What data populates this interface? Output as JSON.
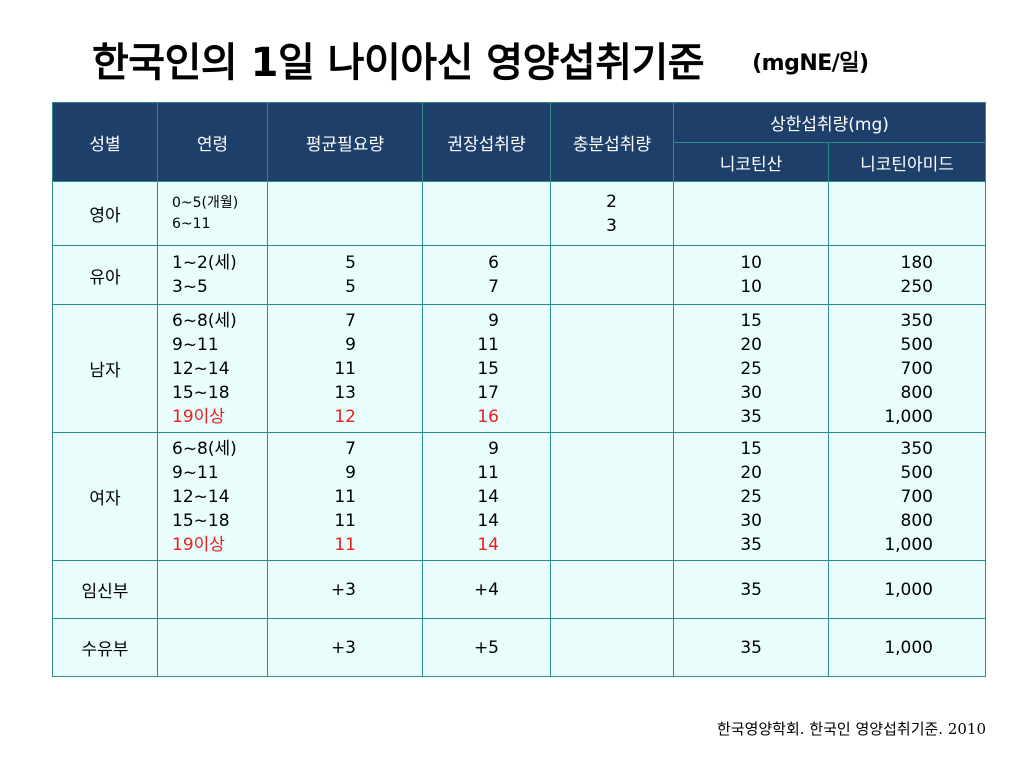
{
  "title": "한국인의 1일 나이아신 영양섭취기준",
  "unit": "(mgNE/일)",
  "headers": {
    "sex": "성별",
    "age": "연령",
    "avg": "평균필요량",
    "rec": "권장섭취량",
    "ade": "충분섭취량",
    "upper": "상한섭취량(mg)",
    "nicotinic": "니코틴산",
    "nicotinamide": "니코틴아미드"
  },
  "rows": [
    {
      "sex": "영아",
      "ages": [
        "0~5(개월)",
        "6~11"
      ],
      "avg": [],
      "rec": [],
      "ade": [
        "2",
        "3"
      ],
      "nic": [],
      "nam": []
    },
    {
      "sex": "유아",
      "ages": [
        "1~2(세)",
        "3~5"
      ],
      "avg": [
        "5",
        "5"
      ],
      "rec": [
        "6",
        "7"
      ],
      "ade": [],
      "nic": [
        "10",
        "10"
      ],
      "nam": [
        "180",
        "250"
      ]
    },
    {
      "sex": "남자",
      "ages": [
        "6~8(세)",
        "9~11",
        "12~14",
        "15~18",
        "19이상"
      ],
      "avg": [
        "7",
        "9",
        "11",
        "13",
        "12"
      ],
      "rec": [
        "9",
        "11",
        "15",
        "17",
        "16"
      ],
      "ade": [],
      "nic": [
        "15",
        "20",
        "25",
        "30",
        "35"
      ],
      "nam": [
        "350",
        "500",
        "700",
        "800",
        "1,000"
      ]
    },
    {
      "sex": "여자",
      "ages": [
        "6~8(세)",
        "9~11",
        "12~14",
        "15~18",
        "19이상"
      ],
      "avg": [
        "7",
        "9",
        "11",
        "11",
        "11"
      ],
      "rec": [
        "9",
        "11",
        "14",
        "14",
        "14"
      ],
      "ade": [],
      "nic": [
        "15",
        "20",
        "25",
        "30",
        "35"
      ],
      "nam": [
        "350",
        "500",
        "700",
        "800",
        "1,000"
      ]
    },
    {
      "sex": "임신부",
      "ages": [],
      "avg": [
        "+3"
      ],
      "rec": [
        "+4"
      ],
      "ade": [],
      "nic": [
        "35"
      ],
      "nam": [
        "1,000"
      ]
    },
    {
      "sex": "수유부",
      "ages": [],
      "avg": [
        "+3"
      ],
      "rec": [
        "+5"
      ],
      "ade": [],
      "nic": [
        "35"
      ],
      "nam": [
        "1,000"
      ]
    }
  ],
  "highlight_color": "#e8201e",
  "header_color": "#1f3f6b",
  "footer": "한국영양학회. 한국인 영양섭취기준. 2010"
}
